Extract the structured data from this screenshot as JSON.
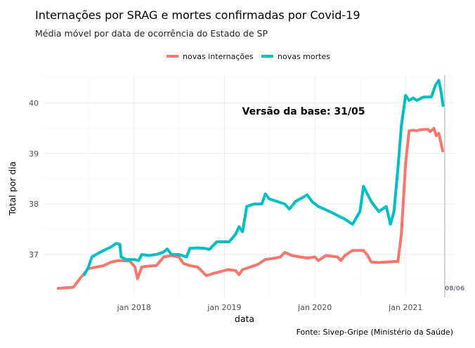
{
  "chart_data": {
    "type": "line",
    "title": "Internações por SRAG e mortes confirmadas por Covid-19",
    "subtitle": "Média móvel por data de ocorrência do Estado de SP",
    "xlabel": "data",
    "ylabel": "Total por dia",
    "caption": "Fonte: Sivep-Gripe (Ministério da Saúde)",
    "annotation": "Versão da base: 31/05",
    "cutoff_label": "08/06",
    "cutoff_date": "2021-06-08",
    "x_ticks": [
      {
        "date": "2018-01-01",
        "label": "jan 2018"
      },
      {
        "date": "2019-01-01",
        "label": "jan 2019"
      },
      {
        "date": "2020-01-01",
        "label": "jan 2020"
      },
      {
        "date": "2021-01-01",
        "label": "jan 2021"
      }
    ],
    "y_ticks": [
      37,
      38,
      39,
      40
    ],
    "xlim": [
      "2017-01-01",
      "2021-07-15"
    ],
    "ylim": [
      36.15,
      40.55
    ],
    "grid": true,
    "legend_position": "top",
    "series": [
      {
        "name": "novas internações",
        "color": "#F8766D",
        "points": [
          [
            "2017-03-01",
            36.33
          ],
          [
            "2017-04-01",
            36.34
          ],
          [
            "2017-05-01",
            36.35
          ],
          [
            "2017-06-01",
            36.55
          ],
          [
            "2017-07-01",
            36.72
          ],
          [
            "2017-08-01",
            36.75
          ],
          [
            "2017-09-01",
            36.78
          ],
          [
            "2017-10-01",
            36.85
          ],
          [
            "2017-11-01",
            36.88
          ],
          [
            "2017-12-15",
            36.87
          ],
          [
            "2018-01-05",
            36.75
          ],
          [
            "2018-01-15",
            36.52
          ],
          [
            "2018-02-01",
            36.75
          ],
          [
            "2018-03-01",
            36.77
          ],
          [
            "2018-04-01",
            36.78
          ],
          [
            "2018-05-01",
            36.95
          ],
          [
            "2018-06-01",
            36.98
          ],
          [
            "2018-07-01",
            36.95
          ],
          [
            "2018-07-20",
            36.82
          ],
          [
            "2018-08-15",
            36.78
          ],
          [
            "2018-09-15",
            36.75
          ],
          [
            "2018-10-20",
            36.58
          ],
          [
            "2018-11-15",
            36.62
          ],
          [
            "2018-12-15",
            36.66
          ],
          [
            "2019-01-15",
            36.7
          ],
          [
            "2019-02-15",
            36.68
          ],
          [
            "2019-03-01",
            36.6
          ],
          [
            "2019-03-15",
            36.7
          ],
          [
            "2019-04-15",
            36.75
          ],
          [
            "2019-05-15",
            36.8
          ],
          [
            "2019-06-15",
            36.9
          ],
          [
            "2019-07-15",
            36.92
          ],
          [
            "2019-08-15",
            36.95
          ],
          [
            "2019-09-01",
            37.04
          ],
          [
            "2019-10-01",
            36.98
          ],
          [
            "2019-11-01",
            36.95
          ],
          [
            "2019-12-01",
            36.93
          ],
          [
            "2020-01-01",
            36.95
          ],
          [
            "2020-01-15",
            36.88
          ],
          [
            "2020-02-15",
            36.98
          ],
          [
            "2020-03-15",
            36.96
          ],
          [
            "2020-04-01",
            36.95
          ],
          [
            "2020-04-15",
            36.88
          ],
          [
            "2020-05-01",
            36.98
          ],
          [
            "2020-06-01",
            37.08
          ],
          [
            "2020-07-15",
            37.08
          ],
          [
            "2020-08-01",
            36.98
          ],
          [
            "2020-08-15",
            36.85
          ],
          [
            "2020-09-15",
            36.84
          ],
          [
            "2020-10-15",
            36.85
          ],
          [
            "2020-11-15",
            36.86
          ],
          [
            "2020-12-01",
            36.86
          ],
          [
            "2020-12-15",
            37.4
          ],
          [
            "2021-01-01",
            38.8
          ],
          [
            "2021-01-15",
            39.45
          ],
          [
            "2021-02-01",
            39.46
          ],
          [
            "2021-02-15",
            39.45
          ],
          [
            "2021-03-01",
            39.47
          ],
          [
            "2021-04-01",
            39.48
          ],
          [
            "2021-04-10",
            39.43
          ],
          [
            "2021-04-25",
            39.5
          ],
          [
            "2021-05-05",
            39.35
          ],
          [
            "2021-05-15",
            39.4
          ],
          [
            "2021-05-31",
            39.05
          ]
        ]
      },
      {
        "name": "novas mortes",
        "color": "#00BFC4",
        "points": [
          [
            "2017-06-15",
            36.6
          ],
          [
            "2017-07-01",
            36.75
          ],
          [
            "2017-07-15",
            36.95
          ],
          [
            "2017-08-01",
            37.0
          ],
          [
            "2017-09-01",
            37.08
          ],
          [
            "2017-10-01",
            37.15
          ],
          [
            "2017-10-20",
            37.22
          ],
          [
            "2017-11-05",
            37.2
          ],
          [
            "2017-11-10",
            36.95
          ],
          [
            "2017-12-01",
            36.9
          ],
          [
            "2018-01-01",
            36.9
          ],
          [
            "2018-01-20",
            36.88
          ],
          [
            "2018-02-01",
            37.0
          ],
          [
            "2018-03-01",
            36.98
          ],
          [
            "2018-04-01",
            37.0
          ],
          [
            "2018-05-01",
            37.05
          ],
          [
            "2018-05-15",
            37.11
          ],
          [
            "2018-06-01",
            37.0
          ],
          [
            "2018-07-01",
            37.0
          ],
          [
            "2018-08-01",
            36.95
          ],
          [
            "2018-08-15",
            37.12
          ],
          [
            "2018-09-15",
            37.13
          ],
          [
            "2018-10-15",
            37.12
          ],
          [
            "2018-11-01",
            37.1
          ],
          [
            "2018-12-01",
            37.25
          ],
          [
            "2019-01-01",
            37.25
          ],
          [
            "2019-01-20",
            37.25
          ],
          [
            "2019-02-15",
            37.4
          ],
          [
            "2019-03-01",
            37.55
          ],
          [
            "2019-03-15",
            37.45
          ],
          [
            "2019-04-01",
            37.95
          ],
          [
            "2019-05-01",
            38.0
          ],
          [
            "2019-06-01",
            38.0
          ],
          [
            "2019-06-15",
            38.2
          ],
          [
            "2019-07-01",
            38.1
          ],
          [
            "2019-08-01",
            38.05
          ],
          [
            "2019-09-01",
            38.0
          ],
          [
            "2019-09-20",
            37.9
          ],
          [
            "2019-10-15",
            38.05
          ],
          [
            "2019-12-01",
            38.18
          ],
          [
            "2019-12-20",
            38.05
          ],
          [
            "2020-01-15",
            37.95
          ],
          [
            "2020-03-01",
            37.85
          ],
          [
            "2020-05-01",
            37.7
          ],
          [
            "2020-06-01",
            37.6
          ],
          [
            "2020-07-01",
            37.85
          ],
          [
            "2020-07-15",
            38.35
          ],
          [
            "2020-08-15",
            38.05
          ],
          [
            "2020-09-15",
            37.85
          ],
          [
            "2020-10-15",
            37.95
          ],
          [
            "2020-11-01",
            37.6
          ],
          [
            "2020-11-15",
            37.85
          ],
          [
            "2020-12-01",
            38.7
          ],
          [
            "2020-12-15",
            39.55
          ],
          [
            "2021-01-01",
            40.15
          ],
          [
            "2021-01-15",
            40.05
          ],
          [
            "2021-02-01",
            40.1
          ],
          [
            "2021-02-15",
            40.05
          ],
          [
            "2021-03-15",
            40.12
          ],
          [
            "2021-04-15",
            40.12
          ],
          [
            "2021-05-01",
            40.35
          ],
          [
            "2021-05-15",
            40.45
          ],
          [
            "2021-05-25",
            40.2
          ],
          [
            "2021-06-01",
            39.95
          ]
        ]
      }
    ]
  }
}
